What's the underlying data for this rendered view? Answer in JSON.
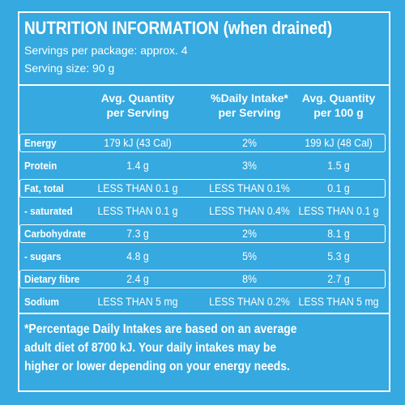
{
  "header": {
    "title": "NUTRITION INFORMATION (when drained)",
    "servings_per_package": "Servings per package: approx. 4",
    "serving_size": "Serving size: 90 g"
  },
  "table": {
    "columns": [
      [
        "Avg. Quantity",
        "per Serving"
      ],
      [
        "%Daily Intake*",
        "per Serving"
      ],
      [
        "Avg. Quantity",
        "per 100 g"
      ]
    ],
    "rows": [
      [
        "Energy",
        "179 kJ (43 Cal)",
        "2%",
        "199 kJ (48 Cal)"
      ],
      [
        "Protein",
        "1.4 g",
        "3%",
        "1.5 g"
      ],
      [
        "Fat, total",
        "LESS THAN 0.1 g",
        "LESS THAN 0.1%",
        "0.1 g"
      ],
      [
        "- saturated",
        "LESS THAN 0.1 g",
        "LESS THAN 0.4%",
        "LESS THAN 0.1 g"
      ],
      [
        "Carbohydrate",
        "7.3 g",
        "2%",
        "8.1 g"
      ],
      [
        "- sugars",
        "4.8 g",
        "5%",
        "5.3 g"
      ],
      [
        "Dietary fibre",
        "2.4 g",
        "8%",
        "2.7 g"
      ],
      [
        "Sodium",
        "LESS THAN 5 mg",
        "LESS THAN 0.2%",
        "LESS THAN 5 mg"
      ]
    ]
  },
  "footnote": [
    "*Percentage Daily Intakes are based on an average",
    "adult diet of 8700 kJ. Your daily intakes may be",
    "higher or lower depending on your energy needs."
  ]
}
